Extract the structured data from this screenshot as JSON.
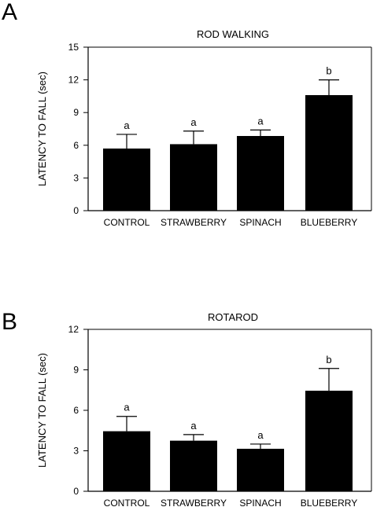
{
  "panels": [
    {
      "letter": "A",
      "chart_data": {
        "type": "bar",
        "title": "ROD WALKING",
        "ylabel": "LATENCY TO FALL (sec)",
        "xlabel": "",
        "categories": [
          "CONTROL",
          "STRAWBERRY",
          "SPINACH",
          "BLUEBERRY"
        ],
        "values": [
          5.7,
          6.1,
          6.85,
          10.6
        ],
        "error_upper": [
          1.3,
          1.2,
          0.55,
          1.4
        ],
        "significance": [
          "a",
          "a",
          "a",
          "b"
        ],
        "ylim": [
          0,
          15
        ],
        "yticks": [
          0,
          3,
          6,
          9,
          12,
          15
        ],
        "grid": false,
        "color": "#000000"
      }
    },
    {
      "letter": "B",
      "chart_data": {
        "type": "bar",
        "title": "ROTAROD",
        "ylabel": "LATENCY TO FALL (sec)",
        "xlabel": "",
        "categories": [
          "CONTROL",
          "STRAWBERRY",
          "SPINACH",
          "BLUEBERRY"
        ],
        "values": [
          4.45,
          3.75,
          3.15,
          7.45
        ],
        "error_upper": [
          1.1,
          0.45,
          0.35,
          1.65
        ],
        "significance": [
          "a",
          "a",
          "a",
          "b"
        ],
        "ylim": [
          0,
          12
        ],
        "yticks": [
          0,
          3,
          6,
          9,
          12
        ],
        "grid": false,
        "color": "#000000"
      }
    }
  ]
}
